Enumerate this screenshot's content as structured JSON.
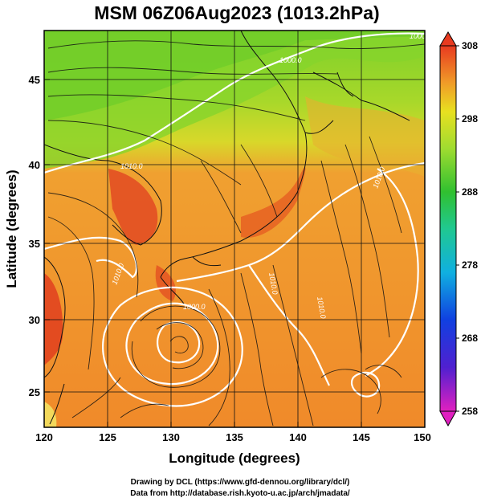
{
  "title": "MSM 06Z06Aug2023 (1013.2hPa)",
  "xlabel": "Longitude (degrees)",
  "ylabel": "Latitude  (degrees)",
  "x_ticks": [
    "120",
    "125",
    "130",
    "135",
    "140",
    "145",
    "150"
  ],
  "y_ticks": [
    "25",
    "30",
    "35",
    "40",
    "45"
  ],
  "colorbar_ticks": [
    "308",
    "298",
    "288",
    "278",
    "268",
    "258"
  ],
  "contour_labels": [
    "1000.0",
    "1010.0",
    "1010.0",
    "1010.0",
    "1010.0",
    "1010.0",
    "1000.0",
    "1000.0"
  ],
  "credit_line1": "Drawing by DCL (https://www.gfd-dennou.org/library/dcl/)",
  "credit_line2": "Data from http://database.rish.kyoto-u.ac.jp/arch/jmadata/",
  "colors": {
    "warm": "#f08a2a",
    "hot": "#e23b1a",
    "green": "#7fd128",
    "yellow": "#d8e02a",
    "contour": "#ffffff",
    "streamline": "#111111"
  },
  "map": {
    "lon_range": [
      120,
      150
    ],
    "lat_range": [
      22.5,
      47.5
    ],
    "colorbar_range": [
      258,
      308
    ],
    "typhoon_center": [
      130,
      28
    ],
    "secondary_low": [
      145.5,
      25.5
    ]
  }
}
